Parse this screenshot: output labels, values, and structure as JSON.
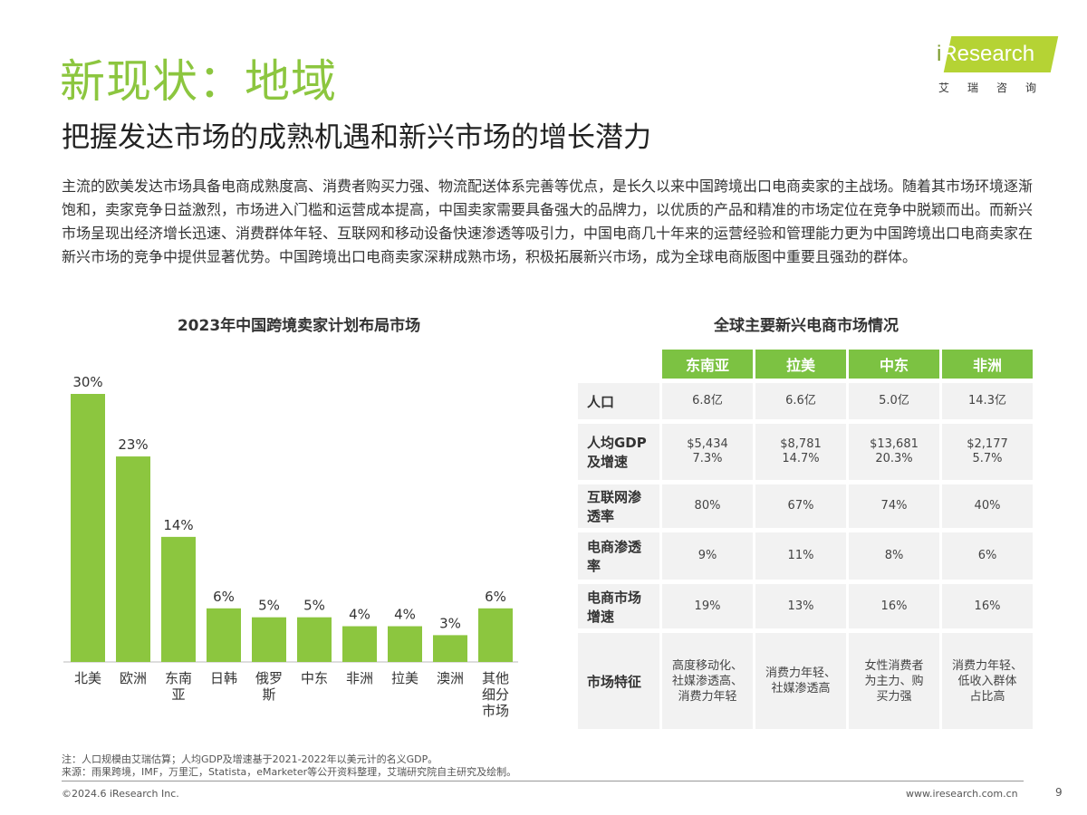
{
  "header": {
    "title": "新现状：地域",
    "subtitle": "把握发达市场的成熟机遇和新兴市场的增长潜力",
    "logo_text": "iResearch",
    "logo_cn": "艾瑞咨询"
  },
  "body_text": "主流的欧美发达市场具备电商成熟度高、消费者购买力强、物流配送体系完善等优点，是长久以来中国跨境出口电商卖家的主战场。随着其市场环境逐渐饱和，卖家竞争日益激烈，市场进入门槛和运营成本提高，中国卖家需要具备强大的品牌力，以优质的产品和精准的市场定位在竞争中脱颖而出。而新兴市场呈现出经济增长迅速、消费群体年轻、互联网和移动设备快速渗透等吸引力，中国电商几十年来的运营经验和管理能力更为中国跨境出口电商卖家在新兴市场的竞争中提供显著优势。中国跨境出口电商卖家深耕成熟市场，积极拓展新兴市场，成为全球电商版图中重要且强劲的群体。",
  "chart_data": [
    {
      "type": "bar",
      "title": "2023年中国跨境卖家计划布局市场",
      "categories": [
        "北美",
        "欧洲",
        "东南亚",
        "日韩",
        "俄罗斯",
        "中东",
        "非洲",
        "拉美",
        "澳洲",
        "其他细分市场"
      ],
      "category_lines": [
        [
          "北美"
        ],
        [
          "欧洲"
        ],
        [
          "东南",
          "亚"
        ],
        [
          "日韩"
        ],
        [
          "俄罗",
          "斯"
        ],
        [
          "中东"
        ],
        [
          "非洲"
        ],
        [
          "拉美"
        ],
        [
          "澳洲"
        ],
        [
          "其他",
          "细分",
          "市场"
        ]
      ],
      "values": [
        30,
        23,
        14,
        6,
        5,
        5,
        4,
        4,
        3,
        6
      ],
      "data_labels": [
        "30%",
        "23%",
        "14%",
        "6%",
        "5%",
        "5%",
        "4%",
        "4%",
        "3%",
        "6%"
      ],
      "unit": "%",
      "ylim": [
        0,
        30
      ],
      "grid": false,
      "color": "#8cc63f"
    },
    {
      "type": "table",
      "title": "全球主要新兴电商市场情况",
      "columns": [
        "东南亚",
        "拉美",
        "中东",
        "非洲"
      ],
      "rows": [
        {
          "label": [
            "人口"
          ],
          "cells": [
            [
              "6.8亿"
            ],
            [
              "6.6亿"
            ],
            [
              "5.0亿"
            ],
            [
              "14.3亿"
            ]
          ]
        },
        {
          "label": [
            "人均GDP",
            "及增速"
          ],
          "cells": [
            [
              "$5,434",
              "7.3%"
            ],
            [
              "$8,781",
              "14.7%"
            ],
            [
              "$13,681",
              "20.3%"
            ],
            [
              "$2,177",
              "5.7%"
            ]
          ]
        },
        {
          "label": [
            "互联网渗",
            "透率"
          ],
          "cells": [
            [
              "80%"
            ],
            [
              "67%"
            ],
            [
              "74%"
            ],
            [
              "40%"
            ]
          ]
        },
        {
          "label": [
            "电商渗透",
            "率"
          ],
          "cells": [
            [
              "9%"
            ],
            [
              "11%"
            ],
            [
              "8%"
            ],
            [
              "6%"
            ]
          ]
        },
        {
          "label": [
            "电商市场",
            "增速"
          ],
          "cells": [
            [
              "19%"
            ],
            [
              "13%"
            ],
            [
              "16%"
            ],
            [
              "16%"
            ]
          ]
        },
        {
          "label": [
            "市场特征"
          ],
          "cells": [
            [
              "高度移动化、",
              "社媒渗透高、",
              "消费力年轻"
            ],
            [
              "消费力年轻、",
              "社媒渗透高"
            ],
            [
              "女性消费者",
              "为主力、购",
              "买力强"
            ],
            [
              "消费力年轻、",
              "低收入群体",
              "占比高"
            ]
          ]
        }
      ],
      "header_color": "#7cc242"
    }
  ],
  "footer": {
    "note": "注：人口规模由艾瑞估算；人均GDP及增速基于2021-2022年以美元计的名义GDP。",
    "source": "来源：雨果跨境，IMF，万里汇，Statista，eMarketer等公开资料整理，艾瑞研究院自主研究及绘制。",
    "copyright": "©2024.6 iResearch Inc.",
    "url": "www.iresearch.com.cn",
    "page": "9"
  }
}
